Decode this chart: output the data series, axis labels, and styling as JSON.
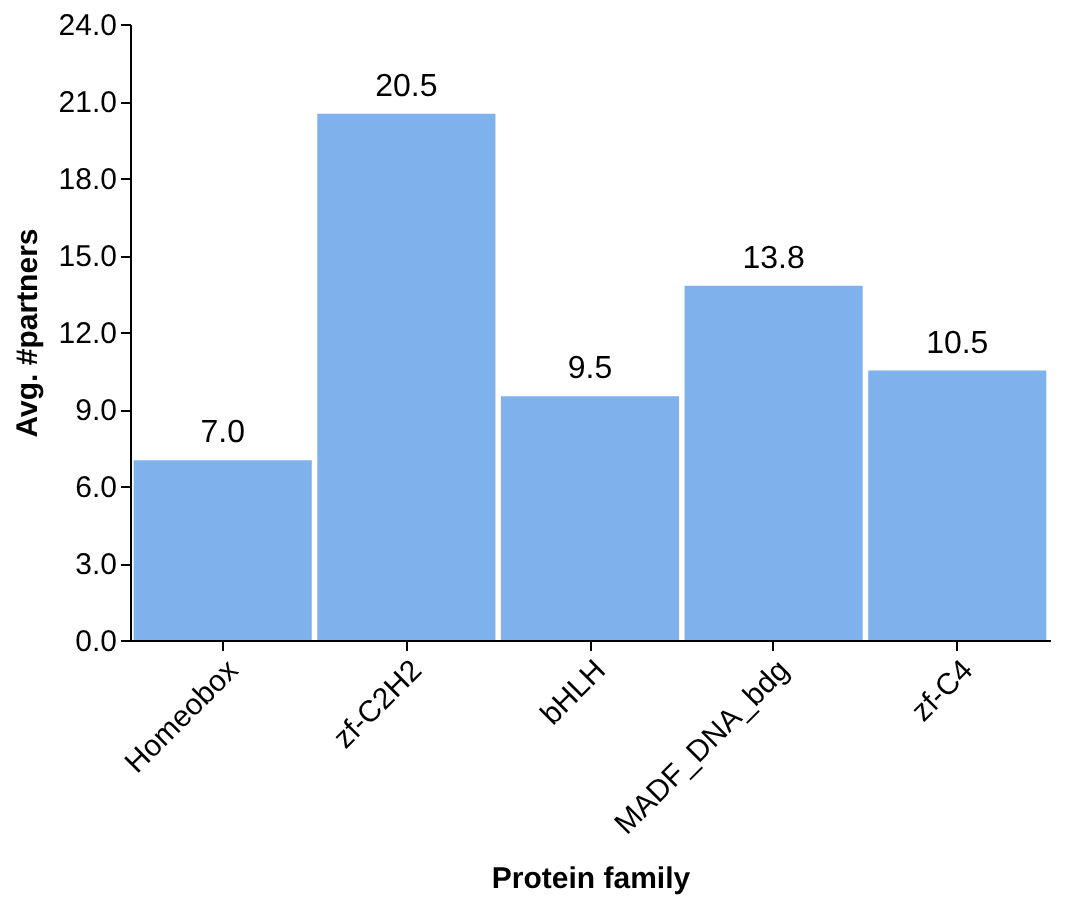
{
  "chart_data": {
    "type": "bar",
    "xlabel": "Protein family",
    "ylabel": "Avg. #partners",
    "categories": [
      "Homeobox",
      "zf-C2H2",
      "bHLH",
      "MADF_DNA_bdg",
      "zf-C4"
    ],
    "values": [
      7.0,
      20.5,
      9.5,
      13.8,
      10.5
    ],
    "value_labels": [
      "7.0",
      "20.5",
      "9.5",
      "13.8",
      "10.5"
    ],
    "color": "#7fb2ec",
    "ylim": [
      0,
      24
    ],
    "yticks": [
      {
        "value": 0,
        "label": "0.0"
      },
      {
        "value": 3,
        "label": "3.0"
      },
      {
        "value": 6,
        "label": "6.0"
      },
      {
        "value": 9,
        "label": "9.0"
      },
      {
        "value": 12,
        "label": "12.0"
      },
      {
        "value": 15,
        "label": "15.0"
      },
      {
        "value": 18,
        "label": "18.0"
      },
      {
        "value": 21,
        "label": "21.0"
      },
      {
        "value": 24,
        "label": "24.0"
      }
    ],
    "grid": false
  }
}
